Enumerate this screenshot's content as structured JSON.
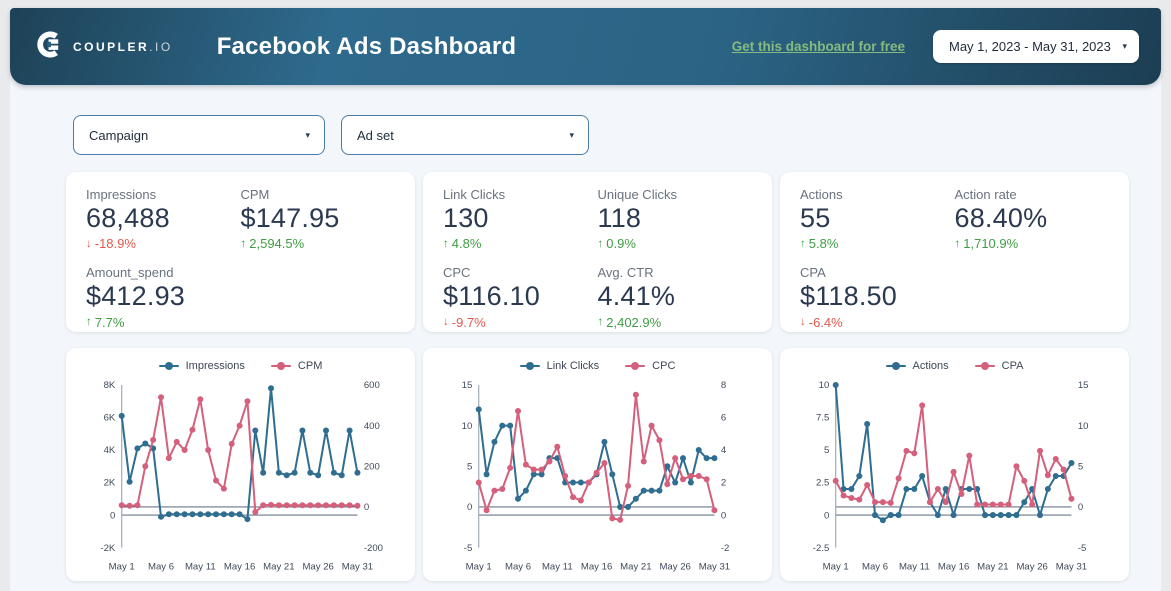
{
  "header": {
    "brand": "COUPLER",
    "brand_suffix": ".IO",
    "title": "Facebook Ads Dashboard",
    "free_link": "Get this dashboard for free",
    "date_range": "May 1, 2023 - May 31, 2023"
  },
  "filters": [
    {
      "label": "Campaign"
    },
    {
      "label": "Ad set"
    }
  ],
  "colors": {
    "blue": "#2f6e91",
    "red": "#d4607c",
    "positive": "#3f9d44",
    "negative": "#e4584c"
  },
  "kpi_cards": [
    {
      "metrics": [
        {
          "label": "Impressions",
          "value": "68,488",
          "arrow": "↓",
          "trend": "down",
          "delta": "-18.9%"
        },
        {
          "label": "CPM",
          "value": "$147.95",
          "arrow": "↑",
          "trend": "up",
          "delta": "2,594.5%"
        },
        {
          "label": "Amount_spend",
          "value": "$412.93",
          "arrow": "↑",
          "trend": "up",
          "delta": "7.7%"
        }
      ]
    },
    {
      "metrics": [
        {
          "label": "Link Clicks",
          "value": "130",
          "arrow": "↑",
          "trend": "up",
          "delta": "4.8%"
        },
        {
          "label": "Unique Clicks",
          "value": "118",
          "arrow": "↑",
          "trend": "up",
          "delta": "0.9%"
        },
        {
          "label": "CPC",
          "value": "$116.10",
          "arrow": "↓",
          "trend": "down",
          "delta": "-9.7%"
        },
        {
          "label": "Avg. CTR",
          "value": "4.41%",
          "arrow": "↑",
          "trend": "up",
          "delta": "2,402.9%"
        }
      ]
    },
    {
      "metrics": [
        {
          "label": "Actions",
          "value": "55",
          "arrow": "↑",
          "trend": "up",
          "delta": "5.8%"
        },
        {
          "label": "Action rate",
          "value": "68.40%",
          "arrow": "↑",
          "trend": "up",
          "delta": "1,710.9%"
        },
        {
          "label": "CPA",
          "value": "$118.50",
          "arrow": "↓",
          "trend": "down",
          "delta": "-6.4%"
        }
      ]
    }
  ],
  "chart_data": [
    {
      "type": "line",
      "name": "impressions-cpm",
      "x_axis": {
        "labels": [
          "May 1",
          "May 6",
          "May 11",
          "May 16",
          "May 21",
          "May 26",
          "May 31"
        ],
        "label_days": [
          1,
          6,
          11,
          16,
          21,
          26,
          31
        ]
      },
      "left_axis": {
        "min": -2000,
        "max": 8000,
        "tick_values": [
          8000,
          6000,
          4000,
          2000,
          0,
          -2000
        ],
        "tick_labels": [
          "8K",
          "6K",
          "4K",
          "2K",
          "0",
          "-2K"
        ]
      },
      "right_axis": {
        "min": -200,
        "max": 600,
        "tick_values": [
          600,
          400,
          200,
          0,
          -200
        ],
        "tick_labels": [
          "600",
          "400",
          "200",
          "0",
          "-200"
        ]
      },
      "series": [
        {
          "name": "Impressions",
          "axis": "left",
          "color_key": "blue",
          "values": [
            6100,
            2050,
            4100,
            4400,
            4100,
            -100,
            50,
            50,
            50,
            50,
            50,
            50,
            50,
            50,
            50,
            50,
            -250,
            5200,
            2600,
            7800,
            2600,
            2450,
            2600,
            5200,
            2600,
            2450,
            5200,
            2600,
            2450,
            5200,
            2600
          ]
        },
        {
          "name": "CPM",
          "axis": "right",
          "color_key": "red",
          "values": [
            8,
            6,
            8,
            200,
            330,
            540,
            240,
            320,
            280,
            380,
            530,
            280,
            130,
            90,
            310,
            400,
            520,
            -25,
            8,
            10,
            8,
            8,
            8,
            8,
            8,
            8,
            8,
            8,
            8,
            8,
            6
          ]
        }
      ]
    },
    {
      "type": "line",
      "name": "linkclicks-cpc",
      "x_axis": {
        "labels": [
          "May 1",
          "May 6",
          "May 11",
          "May 16",
          "May 21",
          "May 26",
          "May 31"
        ],
        "label_days": [
          1,
          6,
          11,
          16,
          21,
          26,
          31
        ]
      },
      "left_axis": {
        "min": -5,
        "max": 15,
        "tick_values": [
          15,
          10,
          5,
          0,
          -5
        ],
        "tick_labels": [
          "15",
          "10",
          "5",
          "0",
          "-5"
        ]
      },
      "right_axis": {
        "min": -2,
        "max": 8,
        "tick_values": [
          8,
          6,
          4,
          2,
          0,
          -2
        ],
        "tick_labels": [
          "8",
          "6",
          "4",
          "2",
          "0",
          "-2"
        ]
      },
      "series": [
        {
          "name": "Link Clicks",
          "axis": "left",
          "color_key": "blue",
          "values": [
            12,
            4,
            8,
            10,
            10,
            1,
            2,
            4,
            4,
            6,
            6,
            3,
            3,
            3,
            3,
            4,
            8,
            4,
            0,
            0,
            1,
            2,
            2,
            2,
            5,
            3,
            6,
            3,
            7,
            6,
            6
          ]
        },
        {
          "name": "CPC",
          "axis": "right",
          "color_key": "red",
          "values": [
            2,
            0.3,
            1.5,
            1.6,
            2.9,
            6.4,
            3.1,
            2.8,
            2.8,
            3.3,
            4.2,
            2.4,
            1.1,
            0.9,
            2,
            2.6,
            3.2,
            -0.2,
            -0.3,
            1.8,
            7.4,
            3.3,
            5.5,
            4.6,
            1.9,
            3.5,
            2.2,
            2.4,
            2.4,
            2.2,
            0.3
          ]
        }
      ]
    },
    {
      "type": "line",
      "name": "actions-cpa",
      "x_axis": {
        "labels": [
          "May 1",
          "May 6",
          "May 11",
          "May 16",
          "May 21",
          "May 26",
          "May 31"
        ],
        "label_days": [
          1,
          6,
          11,
          16,
          21,
          26,
          31
        ]
      },
      "left_axis": {
        "min": -2.5,
        "max": 10,
        "tick_values": [
          10,
          7.5,
          5,
          2.5,
          0,
          -2.5
        ],
        "tick_labels": [
          "10",
          "7.5",
          "5",
          "2.5",
          "0",
          "-2.5"
        ]
      },
      "right_axis": {
        "min": -5,
        "max": 15,
        "tick_values": [
          15,
          10,
          5,
          0,
          -5
        ],
        "tick_labels": [
          "15",
          "10",
          "5",
          "0",
          "-5"
        ]
      },
      "series": [
        {
          "name": "Actions",
          "axis": "left",
          "color_key": "blue",
          "values": [
            10,
            2,
            2,
            3,
            7,
            0,
            -0.4,
            0,
            0,
            2,
            2,
            3,
            1,
            0,
            2,
            0,
            2,
            2,
            2,
            0,
            0,
            0,
            0,
            0,
            1,
            2,
            0,
            2,
            3,
            3,
            4
          ]
        },
        {
          "name": "CPA",
          "axis": "right",
          "color_key": "red",
          "values": [
            3.2,
            1.4,
            1.1,
            0.9,
            2.7,
            0.6,
            0.6,
            0.5,
            3.5,
            6.9,
            6.6,
            12.5,
            0.6,
            2.2,
            0.6,
            4.3,
            1.6,
            6.3,
            0.3,
            0.3,
            0.3,
            0.3,
            0.3,
            5,
            3.2,
            0.3,
            6.9,
            3.9,
            5.9,
            4.6,
            1
          ]
        }
      ]
    }
  ]
}
